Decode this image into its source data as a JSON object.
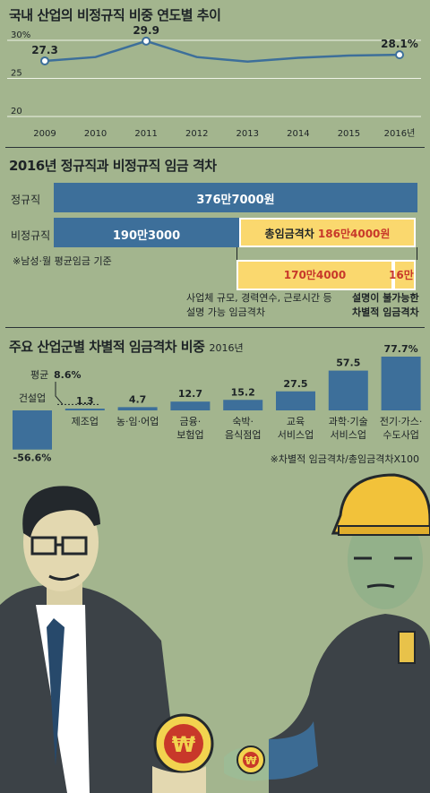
{
  "chart_data": [
    {
      "type": "line",
      "title": "국내 산업의 비정규직 비중 연도별 추이",
      "x": [
        "2009",
        "2010",
        "2011",
        "2012",
        "2013",
        "2014",
        "2015",
        "2016년"
      ],
      "values": [
        27.3,
        27.8,
        29.9,
        27.8,
        27.2,
        27.7,
        28.0,
        28.1
      ],
      "labels": {
        "0": "27.3",
        "2": "29.9",
        "7": "28.1%"
      },
      "y_ticks": [
        "30%",
        "25",
        "20"
      ],
      "ylim": [
        20,
        30
      ],
      "grid": true,
      "color": "#3d6f9a"
    },
    {
      "type": "bar",
      "title": "2016년 정규직과 비정규직 임금 격차",
      "rows": [
        {
          "label": "정규직",
          "value_label": "376만7000원",
          "value": 376.7
        },
        {
          "label": "비정규직",
          "value_label": "190만3000",
          "value": 190.3
        }
      ],
      "total_gap": {
        "label": "총임금격차",
        "value_label": "186만4000원",
        "value": 186.4
      },
      "split": [
        {
          "value_label": "170만4000",
          "value": 170.4,
          "desc": [
            "사업체 규모, 경력연수, 근로시간 등",
            "설명 가능 임금격차"
          ]
        },
        {
          "value_label": "16만",
          "value": 16.0,
          "desc": [
            "설명이 불가능한",
            "차별적 임금격차"
          ]
        }
      ],
      "note": "※남성·월 평균임금 기준"
    },
    {
      "type": "bar",
      "title": "주요 산업군별 차별적 임금격차 비중",
      "subtitle": "2016년",
      "categories": [
        [
          "건설업"
        ],
        [
          "제조업"
        ],
        [
          "농·임·어업"
        ],
        [
          "금융·",
          "보험업"
        ],
        [
          "숙박·",
          "음식점업"
        ],
        [
          "교육",
          "서비스업"
        ],
        [
          "과학·기술",
          "서비스업"
        ],
        [
          "전기·가스·",
          "수도사업"
        ]
      ],
      "values": [
        -56.6,
        1.3,
        4.7,
        12.7,
        15.2,
        27.5,
        57.5,
        77.7
      ],
      "value_labels": [
        "-56.6%",
        "1.3",
        "4.7",
        "12.7",
        "15.2",
        "27.5",
        "57.5",
        "77.7%"
      ],
      "average": {
        "label": "평균",
        "value_label": "8.6%",
        "value": 8.6
      },
      "note": "※차별적 임금격차/총임금격차X100",
      "color": "#3d6f9a"
    }
  ],
  "colors": {
    "background": "#a3b58e",
    "blue": "#3d6f9a",
    "yellow": "#fad86e",
    "red_text": "#c8382a"
  }
}
